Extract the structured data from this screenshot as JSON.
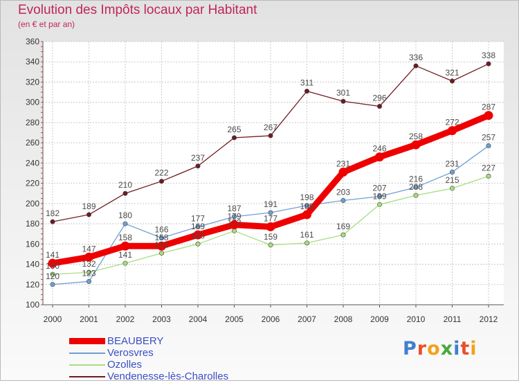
{
  "chart_data": {
    "type": "line",
    "title": "Evolution des Impôts locaux par Habitant",
    "subtitle": "(en € et par an)",
    "xlabel": "",
    "ylabel": "",
    "categories": [
      "2000",
      "2001",
      "2002",
      "2003",
      "2004",
      "2005",
      "2006",
      "2007",
      "2008",
      "2009",
      "2010",
      "2011",
      "2012"
    ],
    "ylim": [
      100,
      360
    ],
    "yticks": [
      100,
      120,
      140,
      160,
      180,
      200,
      220,
      240,
      260,
      280,
      300,
      320,
      340,
      360
    ],
    "grid": true,
    "legend_position": "bottom-left",
    "series": [
      {
        "name": "Vendenesse-lès-Charolles",
        "color": "#6e1b20",
        "values": [
          182,
          189,
          210,
          222,
          237,
          265,
          267,
          311,
          301,
          296,
          336,
          321,
          338
        ]
      },
      {
        "name": "Ozolles",
        "color": "#a6dd7e",
        "values": [
          130,
          132,
          141,
          151,
          160,
          173,
          159,
          161,
          169,
          199,
          208,
          215,
          227
        ]
      },
      {
        "name": "Verosvres",
        "color": "#6f9fd2",
        "values": [
          120,
          123,
          180,
          166,
          177,
          187,
          191,
          198,
          203,
          207,
          216,
          231,
          257
        ]
      },
      {
        "name": "BEAUBERY",
        "color": "#ee0000",
        "values": [
          141,
          147,
          158,
          158,
          169,
          179,
          177,
          189,
          231,
          246,
          258,
          272,
          287
        ]
      }
    ],
    "legend_order": [
      "BEAUBERY",
      "Verosvres",
      "Ozolles",
      "Vendenesse-lès-Charolles"
    ]
  },
  "logo": {
    "text": "Proxiti",
    "letter_colors": [
      "#3f7fd0",
      "#e94f2c",
      "#f2a21b",
      "#49a83c",
      "#3f7fd0",
      "#e94f2c",
      "#f2a21b"
    ]
  }
}
